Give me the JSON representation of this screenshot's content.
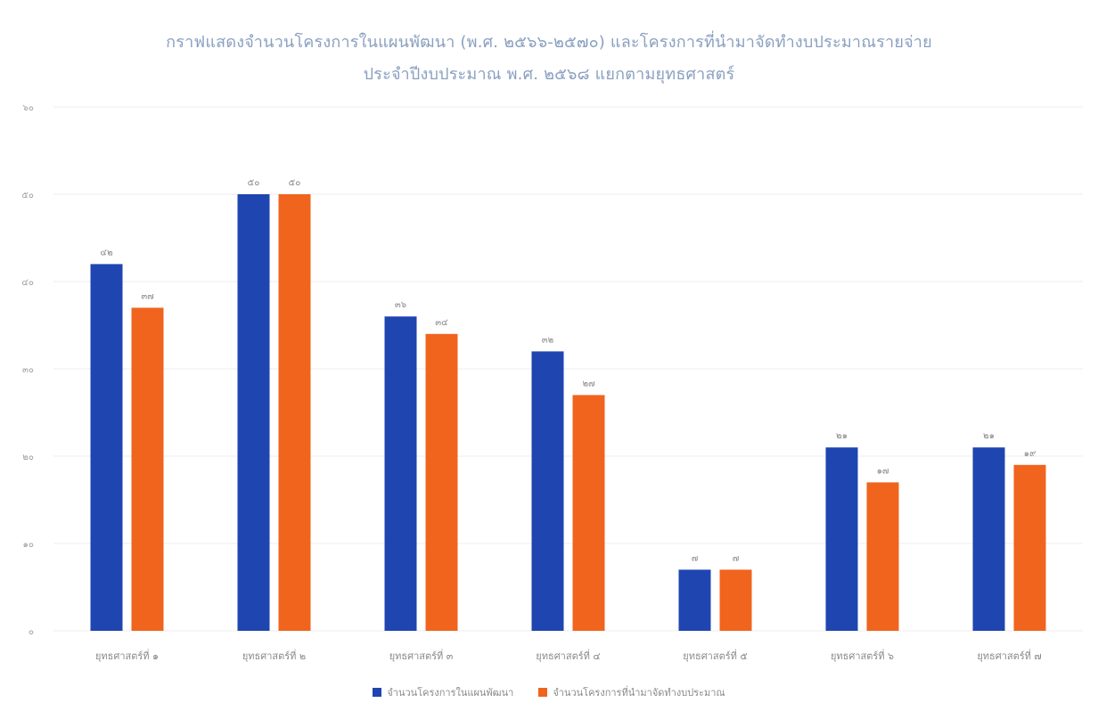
{
  "chart_data": {
    "type": "bar",
    "title": "กราฟแสดงจำนวนโครงการในแผนพัฒนา (พ.ศ. ๒๕๖๖-๒๕๗๐) และโครงการที่นำมาจัดทำงบประมาณรายจ่าย",
    "subtitle": "ประจำปีงบประมาณ พ.ศ. ๒๕๖๘ แยกตามยุทธศาสตร์",
    "categories": [
      "ยุทธศาสตร์ที่ ๑",
      "ยุทธศาสตร์ที่ ๒",
      "ยุทธศาสตร์ที่ ๓",
      "ยุทธศาสตร์ที่ ๔",
      "ยุทธศาสตร์ที่ ๕",
      "ยุทธศาสตร์ที่ ๖",
      "ยุทธศาสตร์ที่ ๗"
    ],
    "series": [
      {
        "name": "จำนวนโครงการในแผนพัฒนา",
        "color": "#1f45b0",
        "values": [
          42,
          50,
          36,
          32,
          7,
          21,
          21
        ],
        "labels": [
          "๔๒",
          "๕๐",
          "๓๖",
          "๓๒",
          "๗",
          "๒๑",
          "๒๑"
        ]
      },
      {
        "name": "จำนวนโครงการที่นำมาจัดทำงบประมาณ",
        "color": "#f0641e",
        "values": [
          37,
          50,
          34,
          27,
          7,
          17,
          19
        ],
        "labels": [
          "๓๗",
          "๕๐",
          "๓๔",
          "๒๗",
          "๗",
          "๑๗",
          "๑๙"
        ]
      }
    ],
    "ylim": [
      0,
      60
    ],
    "yticks": [
      0,
      10,
      20,
      30,
      40,
      50,
      60
    ],
    "ytick_labels": [
      "๐",
      "๑๐",
      "๒๐",
      "๓๐",
      "๔๐",
      "๕๐",
      "๖๐"
    ],
    "grid": true,
    "legend": "bottom"
  }
}
